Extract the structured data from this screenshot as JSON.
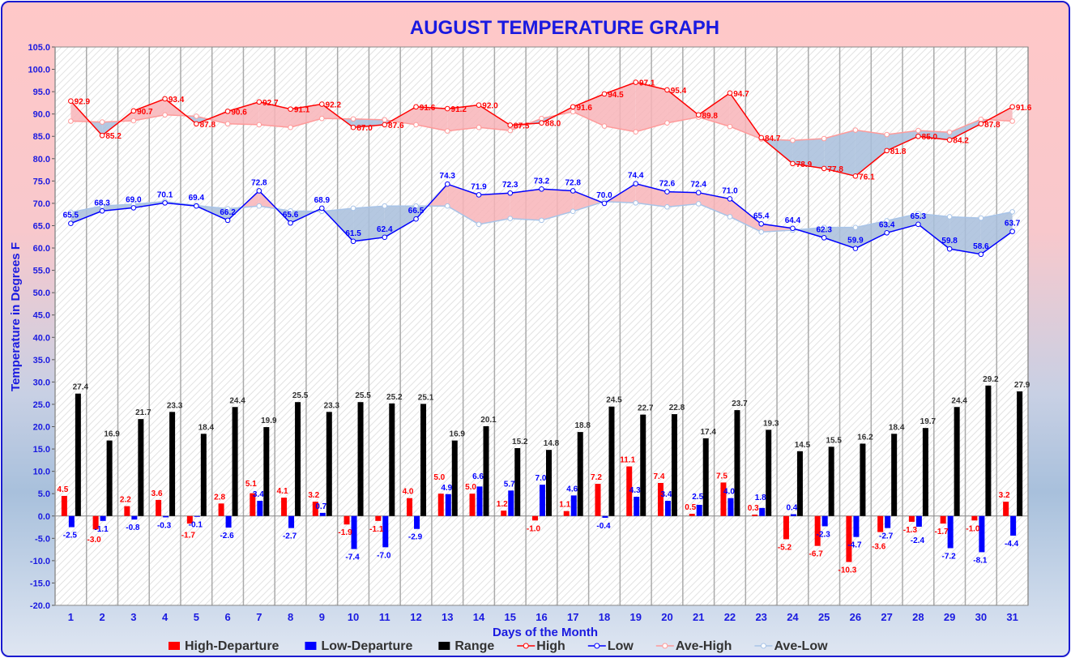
{
  "chart_data": {
    "type": "bar+line",
    "title": "AUGUST TEMPERATURE GRAPH",
    "xlabel": "Days of the Month",
    "ylabel": "Temperature  in  Degrees  F",
    "ylim": [
      -20,
      105
    ],
    "ytick_step": 5,
    "grid": true,
    "legend_position": "bottom",
    "categories": [
      1,
      2,
      3,
      4,
      5,
      6,
      7,
      8,
      9,
      10,
      11,
      12,
      13,
      14,
      15,
      16,
      17,
      18,
      19,
      20,
      21,
      22,
      23,
      24,
      25,
      26,
      27,
      28,
      29,
      30,
      31
    ],
    "series": [
      {
        "name": "High-Departure",
        "kind": "bar",
        "color": "#ff0000",
        "values": [
          4.5,
          -3.0,
          2.2,
          3.6,
          -1.7,
          2.8,
          5.1,
          4.1,
          3.2,
          -1.9,
          -1.1,
          4.0,
          5.0,
          5.0,
          1.2,
          -1.0,
          1.1,
          7.2,
          11.1,
          7.4,
          0.5,
          7.5,
          0.3,
          -5.2,
          -6.7,
          -10.3,
          -3.6,
          -1.3,
          -1.7,
          -1.0,
          3.2
        ]
      },
      {
        "name": "Low-Departure",
        "kind": "bar",
        "color": "#0000ff",
        "values": [
          -2.5,
          -1.1,
          -0.8,
          -0.3,
          -0.1,
          -2.6,
          3.4,
          -2.7,
          0.7,
          -7.4,
          -7.0,
          -2.9,
          4.9,
          6.6,
          5.7,
          7.0,
          4.6,
          -0.4,
          4.3,
          3.4,
          2.5,
          4.0,
          1.8,
          0.4,
          -2.3,
          -4.7,
          -2.7,
          -2.4,
          -7.2,
          -8.1,
          -4.4
        ]
      },
      {
        "name": "Range",
        "kind": "bar",
        "color": "#000000",
        "values": [
          27.4,
          16.9,
          21.7,
          23.3,
          18.4,
          24.4,
          19.9,
          25.5,
          23.3,
          25.5,
          25.2,
          25.1,
          16.9,
          20.1,
          15.2,
          14.8,
          18.8,
          24.5,
          22.7,
          22.8,
          17.4,
          23.7,
          19.3,
          14.5,
          15.5,
          16.2,
          18.4,
          19.7,
          24.4,
          29.2,
          27.9
        ]
      },
      {
        "name": "High",
        "kind": "line",
        "color": "#ff0000",
        "values": [
          92.9,
          85.2,
          90.7,
          93.4,
          87.8,
          90.6,
          92.7,
          91.1,
          92.2,
          87.0,
          87.6,
          91.6,
          91.2,
          92.0,
          87.5,
          88.0,
          91.6,
          94.5,
          97.1,
          95.4,
          89.8,
          94.7,
          84.7,
          78.9,
          77.8,
          76.1,
          81.8,
          85.0,
          84.2,
          87.8,
          91.6
        ]
      },
      {
        "name": "Low",
        "kind": "line",
        "color": "#0000ff",
        "values": [
          65.5,
          68.3,
          69.0,
          70.1,
          69.4,
          66.2,
          72.8,
          65.6,
          68.9,
          61.5,
          62.4,
          66.5,
          74.3,
          71.9,
          72.3,
          73.2,
          72.8,
          70.0,
          74.4,
          72.6,
          72.4,
          71.0,
          65.4,
          64.4,
          62.3,
          59.9,
          63.4,
          65.3,
          59.8,
          58.6,
          63.7
        ]
      },
      {
        "name": "Ave-High",
        "kind": "line",
        "color": "#ff9a9a",
        "values": [
          88.4,
          88.2,
          88.5,
          89.8,
          89.5,
          87.8,
          87.6,
          87.0,
          89.0,
          88.9,
          88.7,
          87.6,
          86.2,
          87.0,
          86.3,
          89.0,
          90.5,
          87.3,
          86.0,
          88.0,
          89.3,
          87.2,
          84.4,
          84.1,
          84.5,
          86.4,
          85.4,
          86.3,
          85.9,
          88.8,
          88.4
        ]
      },
      {
        "name": "Ave-Low",
        "kind": "line",
        "color": "#a8c4e8",
        "values": [
          68.0,
          69.4,
          69.8,
          70.4,
          69.5,
          68.8,
          69.4,
          68.3,
          68.2,
          68.9,
          69.4,
          69.4,
          69.4,
          65.3,
          66.6,
          66.2,
          68.2,
          70.4,
          70.1,
          69.2,
          69.9,
          67.0,
          63.6,
          64.0,
          64.6,
          64.6,
          66.1,
          67.7,
          67.0,
          66.7,
          68.1
        ]
      }
    ],
    "fill_colors": {
      "above": "#f8b4b8",
      "below": "#a8bedc"
    }
  }
}
